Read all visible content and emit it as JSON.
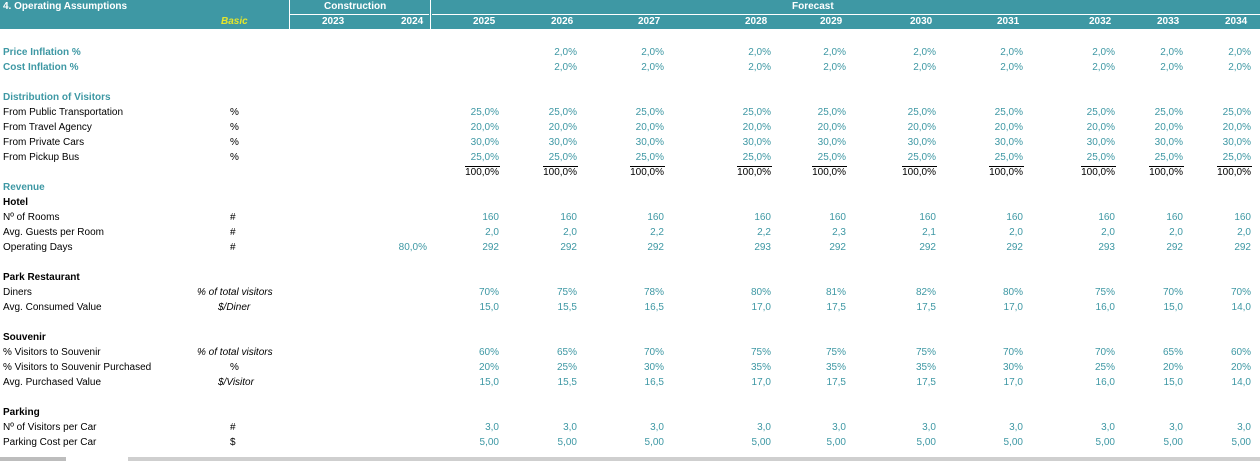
{
  "header": {
    "title": "4. Operating Assumptions",
    "basic_label": "Basic",
    "group_construction": "Construction",
    "group_forecast": "Forecast",
    "years": [
      "2023",
      "2024",
      "2025",
      "2026",
      "2027",
      "2028",
      "2029",
      "2030",
      "2031",
      "2032",
      "2033",
      "2034"
    ]
  },
  "sections": [
    {
      "title": "Price Inflation %",
      "cls": "sect",
      "top": 45,
      "values": [
        "",
        "",
        "",
        "2,0%",
        "2,0%",
        "2,0%",
        "2,0%",
        "2,0%",
        "2,0%",
        "2,0%",
        "2,0%",
        "2,0%"
      ]
    },
    {
      "title": "Cost Inflation %",
      "cls": "sect",
      "top": 60,
      "values": [
        "",
        "",
        "",
        "2,0%",
        "2,0%",
        "2,0%",
        "2,0%",
        "2,0%",
        "2,0%",
        "2,0%",
        "2,0%",
        "2,0%"
      ]
    }
  ],
  "rows": [
    {
      "label": "Price Inflation %",
      "type": "section",
      "unit": "",
      "values": [
        "",
        "",
        "",
        "2,0%",
        "2,0%",
        "2,0%",
        "2,0%",
        "2,0%",
        "2,0%",
        "2,0%",
        "2,0%",
        "2,0%"
      ]
    },
    {
      "label": "Cost Inflation %",
      "type": "section",
      "unit": "",
      "values": [
        "",
        "",
        "",
        "2,0%",
        "2,0%",
        "2,0%",
        "2,0%",
        "2,0%",
        "2,0%",
        "2,0%",
        "2,0%",
        "2,0%"
      ]
    },
    {
      "label": "Distribution of Visitors",
      "type": "section",
      "unit": "",
      "values": []
    },
    {
      "label": "From Public Transportation",
      "type": "row",
      "unit": "%",
      "values": [
        "",
        "",
        "25,0%",
        "25,0%",
        "25,0%",
        "25,0%",
        "25,0%",
        "25,0%",
        "25,0%",
        "25,0%",
        "25,0%",
        "25,0%"
      ]
    },
    {
      "label": "From Travel Agency",
      "type": "row",
      "unit": "%",
      "values": [
        "",
        "",
        "20,0%",
        "20,0%",
        "20,0%",
        "20,0%",
        "20,0%",
        "20,0%",
        "20,0%",
        "20,0%",
        "20,0%",
        "20,0%"
      ]
    },
    {
      "label": "From Private Cars",
      "type": "row",
      "unit": "%",
      "values": [
        "",
        "",
        "30,0%",
        "30,0%",
        "30,0%",
        "30,0%",
        "30,0%",
        "30,0%",
        "30,0%",
        "30,0%",
        "30,0%",
        "30,0%"
      ]
    },
    {
      "label": "From Pickup Bus",
      "type": "row",
      "unit": "%",
      "values": [
        "",
        "",
        "25,0%",
        "25,0%",
        "25,0%",
        "25,0%",
        "25,0%",
        "25,0%",
        "25,0%",
        "25,0%",
        "25,0%",
        "25,0%"
      ]
    },
    {
      "label": "",
      "type": "total",
      "unit": "",
      "values": [
        "",
        "",
        "100,0%",
        "100,0%",
        "100,0%",
        "100,0%",
        "100,0%",
        "100,0%",
        "100,0%",
        "100,0%",
        "100,0%",
        "100,0%"
      ]
    },
    {
      "label": "Revenue",
      "type": "section",
      "unit": "",
      "values": []
    },
    {
      "label": "Hotel",
      "type": "subsection",
      "unit": "",
      "values": []
    },
    {
      "label": "Nº of Rooms",
      "type": "row",
      "unit": "#",
      "values": [
        "",
        "",
        "160",
        "160",
        "160",
        "160",
        "160",
        "160",
        "160",
        "160",
        "160",
        "160"
      ]
    },
    {
      "label": "Avg. Guests per Room",
      "type": "row",
      "unit": "#",
      "values": [
        "",
        "",
        "2,0",
        "2,0",
        "2,2",
        "2,2",
        "2,3",
        "2,1",
        "2,0",
        "2,0",
        "2,0",
        "2,0"
      ]
    },
    {
      "label": "Operating Days",
      "type": "row",
      "unit": "#",
      "values": [
        "",
        "80,0%",
        "292",
        "292",
        "292",
        "293",
        "292",
        "292",
        "292",
        "293",
        "292",
        "292"
      ]
    },
    {
      "label": "Park Restaurant",
      "type": "subsection",
      "unit": "",
      "values": []
    },
    {
      "label": "Diners",
      "type": "row",
      "unit": "% of total visitors",
      "values": [
        "",
        "",
        "70%",
        "75%",
        "78%",
        "80%",
        "81%",
        "82%",
        "80%",
        "75%",
        "70%",
        "70%"
      ]
    },
    {
      "label": "Avg. Consumed Value",
      "type": "row",
      "unit": "$/Diner",
      "values": [
        "",
        "",
        "15,0",
        "15,5",
        "16,5",
        "17,0",
        "17,5",
        "17,5",
        "17,0",
        "16,0",
        "15,0",
        "14,0"
      ]
    },
    {
      "label": "Souvenir",
      "type": "subsection",
      "unit": "",
      "values": []
    },
    {
      "label": "% Visitors to Souvenir",
      "type": "row",
      "unit": "% of total visitors",
      "values": [
        "",
        "",
        "60%",
        "65%",
        "70%",
        "75%",
        "75%",
        "75%",
        "70%",
        "70%",
        "65%",
        "60%"
      ]
    },
    {
      "label": "% Visitors to Souvenir Purchased",
      "type": "row",
      "unit": "%",
      "values": [
        "",
        "",
        "20%",
        "25%",
        "30%",
        "35%",
        "35%",
        "35%",
        "30%",
        "25%",
        "20%",
        "20%"
      ]
    },
    {
      "label": "Avg. Purchased Value",
      "type": "row",
      "unit": "$/Visitor",
      "values": [
        "",
        "",
        "15,0",
        "15,5",
        "16,5",
        "17,0",
        "17,5",
        "17,5",
        "17,0",
        "16,0",
        "15,0",
        "14,0"
      ]
    },
    {
      "label": "Parking",
      "type": "subsection",
      "unit": "",
      "values": []
    },
    {
      "label": "Nº of Visitors per Car",
      "type": "row",
      "unit": "#",
      "values": [
        "",
        "",
        "3,0",
        "3,0",
        "3,0",
        "3,0",
        "3,0",
        "3,0",
        "3,0",
        "3,0",
        "3,0",
        "3,0"
      ]
    },
    {
      "label": "Parking Cost per Car",
      "type": "row",
      "unit": "$",
      "values": [
        "",
        "",
        "5,00",
        "5,00",
        "5,00",
        "5,00",
        "5,00",
        "5,00",
        "5,00",
        "5,00",
        "5,00",
        "5,00"
      ]
    }
  ]
}
